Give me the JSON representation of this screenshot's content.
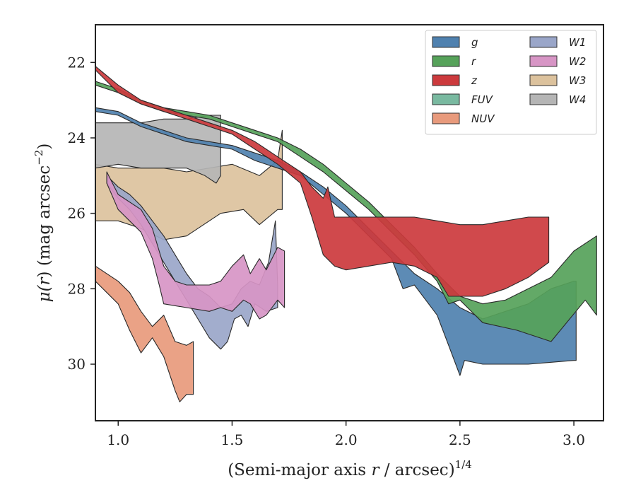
{
  "chart_data": {
    "type": "area",
    "xlabel_main": "(Semi-major axis ",
    "xlabel_var": "r",
    "xlabel_rest": " / arcsec)",
    "xlabel_sup": "1/4",
    "ylabel_main": "μ(",
    "ylabel_var": "r",
    "ylabel_rest": ") (mag arcsec",
    "ylabel_sup": "−2",
    "ylabel_close": ")",
    "xlim": [
      0.9,
      3.13
    ],
    "ylim": [
      31.5,
      21.0
    ],
    "y_inverted": true,
    "xticks": [
      1.0,
      1.5,
      2.0,
      2.5,
      3.0
    ],
    "xtick_labels": [
      "1.0",
      "1.5",
      "2.0",
      "2.5",
      "3.0"
    ],
    "yticks": [
      22,
      24,
      26,
      28,
      30
    ],
    "ytick_labels": [
      "22",
      "24",
      "26",
      "28",
      "30"
    ],
    "grid": false,
    "legend_position": "top-right",
    "legend_columns": 2,
    "series": [
      {
        "name": "W3",
        "color": "#dcc29d",
        "upper": [
          [
            0.9,
            24.7
          ],
          [
            1.0,
            24.8
          ],
          [
            1.2,
            24.8
          ],
          [
            1.3,
            24.9
          ],
          [
            1.4,
            24.8
          ],
          [
            1.5,
            24.7
          ],
          [
            1.62,
            25.0
          ],
          [
            1.7,
            24.6
          ],
          [
            1.72,
            23.8
          ]
        ],
        "lower": [
          [
            0.9,
            26.2
          ],
          [
            1.0,
            26.2
          ],
          [
            1.1,
            26.4
          ],
          [
            1.2,
            26.7
          ],
          [
            1.3,
            26.6
          ],
          [
            1.45,
            26.0
          ],
          [
            1.55,
            25.9
          ],
          [
            1.62,
            26.3
          ],
          [
            1.7,
            25.9
          ],
          [
            1.72,
            25.9
          ]
        ]
      },
      {
        "name": "W1",
        "color": "#9aa6c9",
        "upper": [
          [
            0.95,
            25.0
          ],
          [
            1.0,
            25.3
          ],
          [
            1.05,
            25.5
          ],
          [
            1.1,
            25.8
          ],
          [
            1.15,
            26.2
          ],
          [
            1.2,
            26.6
          ],
          [
            1.25,
            27.1
          ],
          [
            1.3,
            27.6
          ],
          [
            1.35,
            28.0
          ],
          [
            1.4,
            28.2
          ],
          [
            1.45,
            28.5
          ],
          [
            1.5,
            28.4
          ],
          [
            1.54,
            28.0
          ],
          [
            1.58,
            27.8
          ],
          [
            1.62,
            27.9
          ],
          [
            1.66,
            27.3
          ],
          [
            1.69,
            26.2
          ],
          [
            1.7,
            27.9
          ]
        ],
        "lower": [
          [
            0.95,
            25.2
          ],
          [
            1.0,
            25.6
          ],
          [
            1.05,
            25.9
          ],
          [
            1.1,
            26.3
          ],
          [
            1.15,
            26.8
          ],
          [
            1.2,
            27.3
          ],
          [
            1.25,
            27.8
          ],
          [
            1.3,
            28.3
          ],
          [
            1.35,
            28.8
          ],
          [
            1.4,
            29.3
          ],
          [
            1.45,
            29.6
          ],
          [
            1.48,
            29.4
          ],
          [
            1.51,
            28.8
          ],
          [
            1.54,
            28.7
          ],
          [
            1.57,
            29.0
          ],
          [
            1.6,
            28.4
          ],
          [
            1.65,
            28.6
          ],
          [
            1.7,
            28.5
          ]
        ]
      },
      {
        "name": "W2",
        "color": "#d795c5",
        "upper": [
          [
            0.95,
            24.9
          ],
          [
            1.0,
            25.5
          ],
          [
            1.1,
            25.9
          ],
          [
            1.15,
            26.4
          ],
          [
            1.2,
            27.4
          ],
          [
            1.25,
            27.8
          ],
          [
            1.3,
            27.9
          ],
          [
            1.4,
            27.9
          ],
          [
            1.45,
            27.8
          ],
          [
            1.5,
            27.4
          ],
          [
            1.55,
            27.1
          ],
          [
            1.58,
            27.6
          ],
          [
            1.62,
            27.2
          ],
          [
            1.65,
            27.5
          ],
          [
            1.7,
            26.9
          ],
          [
            1.73,
            27.0
          ]
        ],
        "lower": [
          [
            0.95,
            25.2
          ],
          [
            1.0,
            25.9
          ],
          [
            1.1,
            26.5
          ],
          [
            1.15,
            27.2
          ],
          [
            1.18,
            27.9
          ],
          [
            1.2,
            28.4
          ],
          [
            1.3,
            28.5
          ],
          [
            1.4,
            28.6
          ],
          [
            1.45,
            28.5
          ],
          [
            1.5,
            28.6
          ],
          [
            1.55,
            28.3
          ],
          [
            1.58,
            28.4
          ],
          [
            1.62,
            28.8
          ],
          [
            1.65,
            28.7
          ],
          [
            1.7,
            28.3
          ],
          [
            1.73,
            28.5
          ]
        ]
      },
      {
        "name": "W4",
        "color": "#b5b5b5",
        "upper": [
          [
            0.9,
            23.6
          ],
          [
            1.0,
            23.6
          ],
          [
            1.1,
            23.6
          ],
          [
            1.2,
            23.5
          ],
          [
            1.3,
            23.5
          ],
          [
            1.4,
            23.4
          ],
          [
            1.45,
            23.4
          ]
        ],
        "lower": [
          [
            0.9,
            24.8
          ],
          [
            1.0,
            24.7
          ],
          [
            1.1,
            24.8
          ],
          [
            1.2,
            24.8
          ],
          [
            1.3,
            24.8
          ],
          [
            1.38,
            25.0
          ],
          [
            1.43,
            25.2
          ],
          [
            1.45,
            25.0
          ]
        ]
      },
      {
        "name": "NUV",
        "color": "#e89a7c",
        "upper": [
          [
            0.9,
            27.4
          ],
          [
            1.0,
            27.8
          ],
          [
            1.05,
            28.1
          ],
          [
            1.1,
            28.6
          ],
          [
            1.15,
            29.0
          ],
          [
            1.2,
            28.7
          ],
          [
            1.25,
            29.4
          ],
          [
            1.3,
            29.5
          ],
          [
            1.33,
            29.4
          ]
        ],
        "lower": [
          [
            0.9,
            27.8
          ],
          [
            1.0,
            28.4
          ],
          [
            1.05,
            29.1
          ],
          [
            1.1,
            29.7
          ],
          [
            1.15,
            29.3
          ],
          [
            1.2,
            29.8
          ],
          [
            1.25,
            30.7
          ],
          [
            1.27,
            31.0
          ],
          [
            1.3,
            30.8
          ],
          [
            1.33,
            30.8
          ]
        ]
      },
      {
        "name": "g",
        "color": "#4f81af",
        "upper": [
          [
            0.9,
            23.2
          ],
          [
            1.0,
            23.3
          ],
          [
            1.1,
            23.6
          ],
          [
            1.2,
            23.8
          ],
          [
            1.3,
            24.0
          ],
          [
            1.4,
            24.1
          ],
          [
            1.5,
            24.2
          ],
          [
            1.6,
            24.4
          ],
          [
            1.7,
            24.6
          ],
          [
            1.8,
            24.9
          ],
          [
            1.9,
            25.3
          ],
          [
            2.0,
            25.8
          ],
          [
            2.1,
            26.4
          ],
          [
            2.2,
            27.0
          ],
          [
            2.3,
            27.6
          ],
          [
            2.4,
            28.0
          ],
          [
            2.5,
            28.5
          ],
          [
            2.6,
            28.8
          ],
          [
            2.7,
            28.6
          ],
          [
            2.8,
            28.4
          ],
          [
            2.9,
            28.0
          ],
          [
            3.0,
            27.8
          ],
          [
            3.01,
            27.8
          ]
        ],
        "lower": [
          [
            0.9,
            23.3
          ],
          [
            1.0,
            23.4
          ],
          [
            1.1,
            23.7
          ],
          [
            1.2,
            23.9
          ],
          [
            1.3,
            24.1
          ],
          [
            1.4,
            24.2
          ],
          [
            1.5,
            24.3
          ],
          [
            1.6,
            24.6
          ],
          [
            1.7,
            24.8
          ],
          [
            1.8,
            25.0
          ],
          [
            1.9,
            25.5
          ],
          [
            2.0,
            26.0
          ],
          [
            2.1,
            26.6
          ],
          [
            2.2,
            27.2
          ],
          [
            2.25,
            28.0
          ],
          [
            2.3,
            27.9
          ],
          [
            2.35,
            28.3
          ],
          [
            2.4,
            28.7
          ],
          [
            2.45,
            29.5
          ],
          [
            2.5,
            30.3
          ],
          [
            2.52,
            29.9
          ],
          [
            2.6,
            30.0
          ],
          [
            2.8,
            30.0
          ],
          [
            3.0,
            29.9
          ],
          [
            3.01,
            29.9
          ]
        ]
      },
      {
        "name": "r",
        "color": "#56a25a",
        "upper": [
          [
            0.9,
            22.5
          ],
          [
            1.0,
            22.7
          ],
          [
            1.1,
            23.0
          ],
          [
            1.2,
            23.2
          ],
          [
            1.3,
            23.3
          ],
          [
            1.4,
            23.4
          ],
          [
            1.5,
            23.6
          ],
          [
            1.6,
            23.8
          ],
          [
            1.7,
            24.0
          ],
          [
            1.8,
            24.3
          ],
          [
            1.9,
            24.7
          ],
          [
            2.0,
            25.2
          ],
          [
            2.1,
            25.7
          ],
          [
            2.2,
            26.3
          ],
          [
            2.3,
            26.9
          ],
          [
            2.4,
            27.6
          ],
          [
            2.5,
            28.2
          ],
          [
            2.6,
            28.4
          ],
          [
            2.7,
            28.3
          ],
          [
            2.8,
            28.0
          ],
          [
            2.9,
            27.7
          ],
          [
            3.0,
            27.0
          ],
          [
            3.1,
            26.6
          ]
        ],
        "lower": [
          [
            0.9,
            22.6
          ],
          [
            1.0,
            22.8
          ],
          [
            1.1,
            23.1
          ],
          [
            1.2,
            23.3
          ],
          [
            1.3,
            23.4
          ],
          [
            1.4,
            23.5
          ],
          [
            1.5,
            23.7
          ],
          [
            1.6,
            23.9
          ],
          [
            1.7,
            24.1
          ],
          [
            1.8,
            24.5
          ],
          [
            1.9,
            24.9
          ],
          [
            2.0,
            25.4
          ],
          [
            2.1,
            25.9
          ],
          [
            2.2,
            26.5
          ],
          [
            2.3,
            27.1
          ],
          [
            2.4,
            27.8
          ],
          [
            2.45,
            28.4
          ],
          [
            2.5,
            28.3
          ],
          [
            2.6,
            28.9
          ],
          [
            2.75,
            29.1
          ],
          [
            2.9,
            29.4
          ],
          [
            3.05,
            28.3
          ],
          [
            3.1,
            28.7
          ]
        ]
      },
      {
        "name": "z",
        "color": "#cc3a3d",
        "upper": [
          [
            0.9,
            22.1
          ],
          [
            1.0,
            22.6
          ],
          [
            1.1,
            23.0
          ],
          [
            1.2,
            23.2
          ],
          [
            1.3,
            23.4
          ],
          [
            1.4,
            23.6
          ],
          [
            1.5,
            23.8
          ],
          [
            1.6,
            24.1
          ],
          [
            1.7,
            24.5
          ],
          [
            1.8,
            24.9
          ],
          [
            1.85,
            25.3
          ],
          [
            1.9,
            25.6
          ],
          [
            1.92,
            25.3
          ],
          [
            1.95,
            26.1
          ],
          [
            2.0,
            26.1
          ],
          [
            2.1,
            26.1
          ],
          [
            2.2,
            26.1
          ],
          [
            2.3,
            26.1
          ],
          [
            2.4,
            26.2
          ],
          [
            2.5,
            26.3
          ],
          [
            2.6,
            26.3
          ],
          [
            2.7,
            26.2
          ],
          [
            2.8,
            26.1
          ],
          [
            2.89,
            26.1
          ]
        ],
        "lower": [
          [
            0.9,
            22.2
          ],
          [
            1.0,
            22.8
          ],
          [
            1.1,
            23.1
          ],
          [
            1.2,
            23.3
          ],
          [
            1.3,
            23.5
          ],
          [
            1.4,
            23.7
          ],
          [
            1.5,
            23.9
          ],
          [
            1.6,
            24.3
          ],
          [
            1.7,
            24.7
          ],
          [
            1.8,
            25.2
          ],
          [
            1.85,
            26.1
          ],
          [
            1.9,
            27.1
          ],
          [
            1.95,
            27.4
          ],
          [
            2.0,
            27.5
          ],
          [
            2.1,
            27.4
          ],
          [
            2.2,
            27.3
          ],
          [
            2.3,
            27.4
          ],
          [
            2.4,
            27.7
          ],
          [
            2.45,
            28.2
          ],
          [
            2.5,
            28.2
          ],
          [
            2.6,
            28.2
          ],
          [
            2.7,
            28.0
          ],
          [
            2.8,
            27.7
          ],
          [
            2.89,
            27.3
          ]
        ]
      }
    ],
    "legend": [
      {
        "name": "g",
        "color": "#4f81af",
        "col": 0,
        "row": 0
      },
      {
        "name": "r",
        "color": "#56a25a",
        "col": 0,
        "row": 1
      },
      {
        "name": "z",
        "color": "#cc3a3d",
        "col": 0,
        "row": 2
      },
      {
        "name": "FUV",
        "color": "#79b9a0",
        "col": 0,
        "row": 3
      },
      {
        "name": "NUV",
        "color": "#e89a7c",
        "col": 0,
        "row": 4
      },
      {
        "name": "W1",
        "color": "#9aa6c9",
        "col": 1,
        "row": 0
      },
      {
        "name": "W2",
        "color": "#d795c5",
        "col": 1,
        "row": 1
      },
      {
        "name": "W3",
        "color": "#dcc29d",
        "col": 1,
        "row": 2
      },
      {
        "name": "W4",
        "color": "#b5b5b5",
        "col": 1,
        "row": 3
      }
    ]
  }
}
